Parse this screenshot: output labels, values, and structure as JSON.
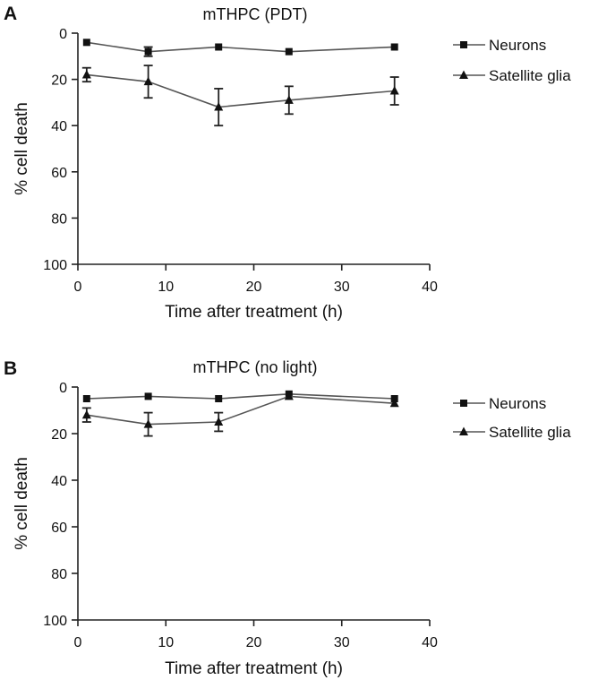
{
  "chart_data": [
    {
      "type": "line",
      "panel": "A",
      "title": "mTHPC (PDT)",
      "xlabel": "Time after treatment (h)",
      "ylabel": "% cell death",
      "xlim": [
        0,
        40
      ],
      "ylim": [
        0,
        100
      ],
      "y_inverted": true,
      "xticks": [
        0,
        10,
        20,
        30,
        40
      ],
      "yticks": [
        0,
        20,
        40,
        60,
        80,
        100
      ],
      "legend_position": "top-right",
      "x": [
        1,
        8,
        16,
        24,
        36
      ],
      "series": [
        {
          "name": "Neurons",
          "marker": "square",
          "values": [
            4,
            8,
            6,
            8,
            6
          ],
          "errors": [
            1,
            2,
            1,
            1,
            1
          ]
        },
        {
          "name": "Satellite glia",
          "marker": "triangle",
          "values": [
            18,
            21,
            32,
            29,
            25
          ],
          "errors": [
            3,
            7,
            8,
            6,
            6
          ]
        }
      ]
    },
    {
      "type": "line",
      "panel": "B",
      "title": "mTHPC (no light)",
      "xlabel": "Time after treatment (h)",
      "ylabel": "% cell death",
      "xlim": [
        0,
        40
      ],
      "ylim": [
        0,
        100
      ],
      "y_inverted": true,
      "xticks": [
        0,
        10,
        20,
        30,
        40
      ],
      "yticks": [
        0,
        20,
        40,
        60,
        80,
        100
      ],
      "legend_position": "top-right",
      "x": [
        1,
        8,
        16,
        24,
        36
      ],
      "series": [
        {
          "name": "Neurons",
          "marker": "square",
          "values": [
            5,
            4,
            5,
            3,
            5
          ],
          "errors": [
            1,
            1,
            1,
            1,
            1
          ]
        },
        {
          "name": "Satellite glia",
          "marker": "triangle",
          "values": [
            12,
            16,
            15,
            4,
            7
          ],
          "errors": [
            3,
            5,
            4,
            1,
            1
          ]
        }
      ]
    }
  ]
}
